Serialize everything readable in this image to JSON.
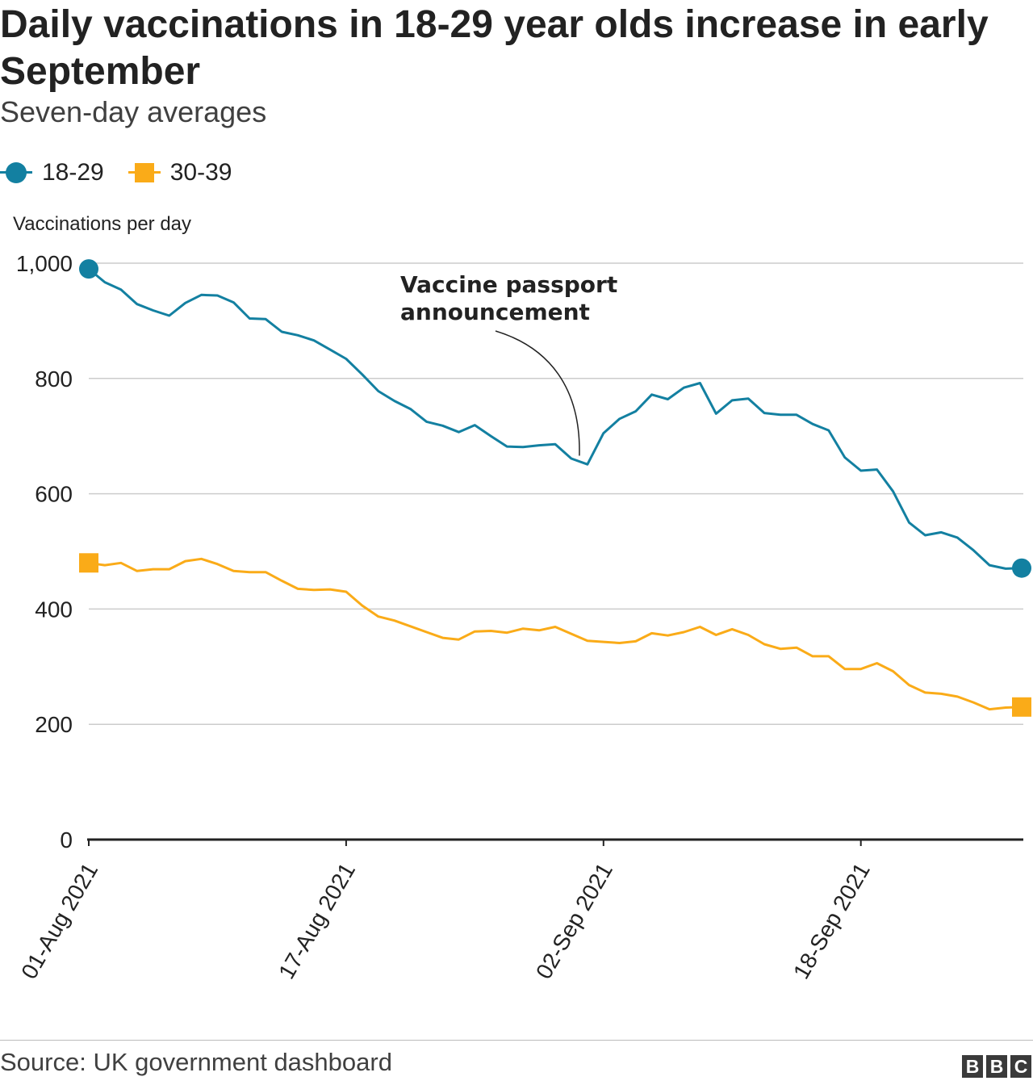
{
  "header": {
    "title": "Daily vaccinations in 18-29 year olds increase in early September",
    "subtitle": "Seven-day averages"
  },
  "legend": {
    "items": [
      {
        "label": "18-29",
        "color": "#1380A1",
        "marker": "circle"
      },
      {
        "label": "30-39",
        "color": "#FAAB18",
        "marker": "square"
      }
    ]
  },
  "chart_data": {
    "type": "line",
    "title": "Daily vaccinations in 18-29 year olds increase in early September",
    "subtitle": "Seven-day averages",
    "ylabel": "Vaccinations per day",
    "xlabel": "",
    "ylim": [
      0,
      1000
    ],
    "yticks": [
      0,
      200,
      400,
      600,
      800,
      1000
    ],
    "ytick_labels": [
      "0",
      "200",
      "400",
      "600",
      "800",
      "1,000"
    ],
    "x_tick_labels": [
      "01-Aug 2021",
      "17-Aug 2021",
      "02-Sep 2021",
      "18-Sep 2021"
    ],
    "x_tick_index": [
      0,
      16,
      32,
      48
    ],
    "grid": true,
    "legend_position": "top-left",
    "start_date": "01-Aug 2021",
    "end_date": "28-Sep 2021",
    "series": [
      {
        "name": "18-29",
        "color": "#1380A1",
        "values": [
          990,
          967,
          954,
          929,
          918,
          909,
          931,
          945,
          944,
          932,
          904,
          903,
          881,
          875,
          866,
          850,
          834,
          807,
          778,
          761,
          747,
          725,
          718,
          707,
          719,
          700,
          682,
          681,
          684,
          686,
          661,
          651,
          705,
          730,
          743,
          772,
          764,
          784,
          792,
          739,
          762,
          765,
          740,
          737,
          737,
          721,
          710,
          663,
          640,
          642,
          604,
          550,
          528,
          533,
          524,
          502,
          476,
          470,
          471
        ]
      },
      {
        "name": "30-39",
        "color": "#FAAB18",
        "values": [
          480,
          476,
          480,
          466,
          469,
          469,
          483,
          487,
          478,
          466,
          464,
          464,
          449,
          435,
          433,
          434,
          430,
          406,
          387,
          380,
          370,
          360,
          350,
          347,
          361,
          362,
          359,
          366,
          363,
          369,
          357,
          345,
          343,
          341,
          344,
          358,
          354,
          360,
          369,
          355,
          365,
          355,
          339,
          331,
          333,
          318,
          318,
          296,
          296,
          306,
          292,
          268,
          255,
          253,
          248,
          238,
          226,
          229,
          230
        ]
      }
    ],
    "annotations": [
      {
        "text_lines": [
          "Vaccine passport",
          "announcement"
        ],
        "at_index": 31,
        "series": "18-29",
        "value": 680
      }
    ]
  },
  "footer": {
    "source": "Source: UK government dashboard",
    "logo_letters": [
      "B",
      "B",
      "C"
    ]
  }
}
